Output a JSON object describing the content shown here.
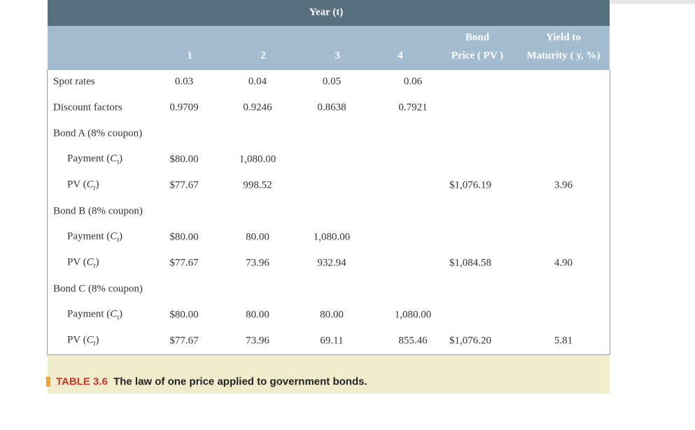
{
  "header": {
    "title": "Year (t)",
    "columns": [
      "1",
      "2",
      "3",
      "4"
    ],
    "price": [
      "Bond",
      "Price ( PV )"
    ],
    "yield": [
      "Yield to",
      "Maturity ( y, %)"
    ]
  },
  "table": {
    "rows": [
      {
        "label": "Spot rates",
        "cells": [
          "0.03",
          "0.04",
          "0.05",
          "0.06",
          null,
          null
        ]
      },
      {
        "label": "Discount factors",
        "cells": [
          "0.9709",
          "0.9246",
          "0.8638",
          "0.7921",
          null,
          null
        ]
      },
      {
        "label": "Bond A (8% coupon)"
      },
      {
        "label": [
          "Payment (",
          "C",
          "t",
          ")"
        ],
        "cells": [
          "$80.00",
          "1,080.00",
          null,
          null,
          null,
          null
        ]
      },
      {
        "label": [
          "PV (",
          "C",
          "t",
          ")"
        ],
        "cells": [
          "$77.67",
          "998.52",
          null,
          null,
          "$1,076.19",
          "3.96"
        ]
      },
      {
        "label": "Bond B (8% coupon)"
      },
      {
        "label": [
          "Payment (",
          "C",
          "t",
          ")"
        ],
        "cells": [
          "$80.00",
          "80.00",
          "1,080.00",
          null,
          null,
          null
        ]
      },
      {
        "label": [
          "PV (",
          "C",
          "t",
          ")"
        ],
        "cells": [
          "$77.67",
          "73.96",
          "932.94",
          null,
          "$1,084.58",
          "4.90"
        ]
      },
      {
        "label": "Bond C (8% coupon)"
      },
      {
        "label": [
          "Payment (",
          "C",
          "t",
          ")"
        ],
        "cells": [
          "$80.00",
          "80.00",
          "80.00",
          "1,080.00",
          null,
          null
        ]
      },
      {
        "label": [
          "PV (",
          "C",
          "t",
          ")"
        ],
        "cells": [
          "$77.67",
          "73.96",
          "69.11",
          "855.46",
          "$1,076.20",
          "5.81"
        ]
      }
    ]
  },
  "caption": {
    "number": "TABLE 3.6",
    "text": "The law of one price applied to government bonds."
  }
}
